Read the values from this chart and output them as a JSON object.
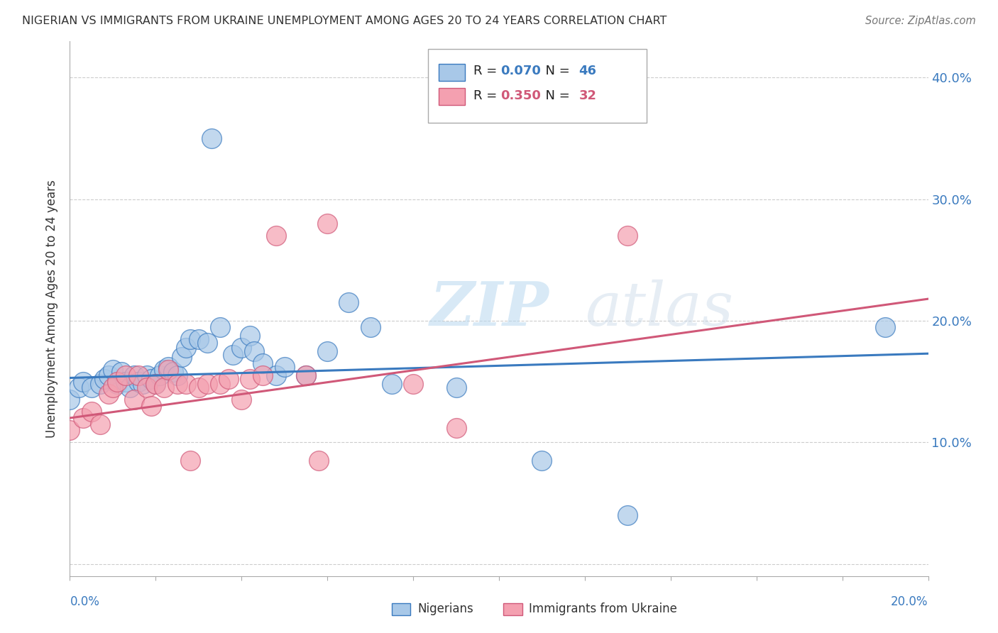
{
  "title": "NIGERIAN VS IMMIGRANTS FROM UKRAINE UNEMPLOYMENT AMONG AGES 20 TO 24 YEARS CORRELATION CHART",
  "source": "Source: ZipAtlas.com",
  "ylabel": "Unemployment Among Ages 20 to 24 years",
  "yticks": [
    0.0,
    0.1,
    0.2,
    0.3,
    0.4
  ],
  "ytick_labels": [
    "",
    "10.0%",
    "20.0%",
    "30.0%",
    "40.0%"
  ],
  "xlim": [
    0.0,
    0.2
  ],
  "ylim": [
    -0.01,
    0.43
  ],
  "color_nigerian": "#a8c8e8",
  "color_ukraine": "#f4a0b0",
  "color_line_nigerian": "#3a7abf",
  "color_line_ukraine": "#d05878",
  "watermark": "ZIPatlas",
  "nigerian_x": [
    0.0,
    0.002,
    0.003,
    0.005,
    0.007,
    0.008,
    0.009,
    0.01,
    0.011,
    0.012,
    0.013,
    0.014,
    0.015,
    0.016,
    0.017,
    0.018,
    0.019,
    0.02,
    0.021,
    0.022,
    0.023,
    0.024,
    0.025,
    0.026,
    0.027,
    0.028,
    0.03,
    0.032,
    0.033,
    0.035,
    0.038,
    0.04,
    0.042,
    0.043,
    0.045,
    0.048,
    0.05,
    0.055,
    0.06,
    0.065,
    0.07,
    0.075,
    0.09,
    0.11,
    0.13,
    0.19
  ],
  "nigerian_y": [
    0.135,
    0.145,
    0.15,
    0.145,
    0.148,
    0.152,
    0.155,
    0.16,
    0.148,
    0.158,
    0.15,
    0.145,
    0.155,
    0.15,
    0.148,
    0.155,
    0.152,
    0.148,
    0.155,
    0.16,
    0.162,
    0.158,
    0.155,
    0.17,
    0.178,
    0.185,
    0.185,
    0.182,
    0.35,
    0.195,
    0.172,
    0.178,
    0.188,
    0.175,
    0.165,
    0.155,
    0.162,
    0.155,
    0.175,
    0.215,
    0.195,
    0.148,
    0.145,
    0.085,
    0.04,
    0.195
  ],
  "ukraine_x": [
    0.0,
    0.003,
    0.005,
    0.007,
    0.009,
    0.01,
    0.011,
    0.013,
    0.015,
    0.016,
    0.018,
    0.019,
    0.02,
    0.022,
    0.023,
    0.025,
    0.027,
    0.028,
    0.03,
    0.032,
    0.035,
    0.037,
    0.04,
    0.042,
    0.045,
    0.048,
    0.055,
    0.058,
    0.06,
    0.08,
    0.09,
    0.13
  ],
  "ukraine_y": [
    0.11,
    0.12,
    0.125,
    0.115,
    0.14,
    0.145,
    0.15,
    0.155,
    0.135,
    0.155,
    0.145,
    0.13,
    0.148,
    0.145,
    0.16,
    0.148,
    0.148,
    0.085,
    0.145,
    0.148,
    0.148,
    0.152,
    0.135,
    0.152,
    0.155,
    0.27,
    0.155,
    0.085,
    0.28,
    0.148,
    0.112,
    0.27
  ],
  "nig_line_x0": 0.0,
  "nig_line_x1": 0.2,
  "nig_line_y0": 0.153,
  "nig_line_y1": 0.173,
  "ukr_line_x0": 0.0,
  "ukr_line_x1": 0.2,
  "ukr_line_y0": 0.12,
  "ukr_line_y1": 0.218
}
